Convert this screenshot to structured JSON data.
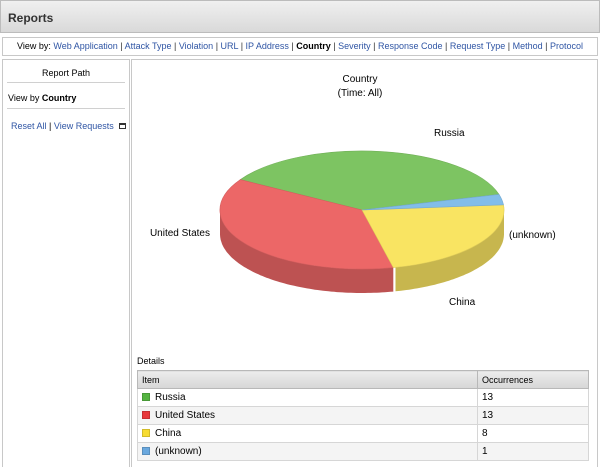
{
  "header": {
    "title": "Reports"
  },
  "view_by": {
    "label": "View by:",
    "options": [
      "Web Application",
      "Attack Type",
      "Violation",
      "URL",
      "IP Address",
      "Country",
      "Severity",
      "Response Code",
      "Request Type",
      "Method",
      "Protocol"
    ],
    "current": "Country"
  },
  "sidebar": {
    "report_path_label": "Report Path",
    "view_by_prefix": "View by",
    "view_by_value": "Country",
    "reset_all_label": "Reset All",
    "separator": "|",
    "view_requests_label": "View Requests",
    "view_requests_icon": "new-window-icon"
  },
  "chart_data": {
    "type": "pie",
    "title": "Country",
    "subtitle": "(Time: All)",
    "categories": [
      "Russia",
      "United States",
      "China",
      "(unknown)"
    ],
    "values": [
      13,
      13,
      8,
      1
    ],
    "colors": [
      "#7dc462",
      "#ec6767",
      "#f9e462",
      "#82bde9"
    ],
    "legend": "none"
  },
  "details": {
    "label": "Details",
    "columns": [
      "Item",
      "Occurrences"
    ],
    "rows": [
      {
        "item": "Russia",
        "occurrences": "13",
        "color": "#55b441"
      },
      {
        "item": "United States",
        "occurrences": "13",
        "color": "#e8383b"
      },
      {
        "item": "China",
        "occurrences": "8",
        "color": "#f7dc32"
      },
      {
        "item": "(unknown)",
        "occurrences": "1",
        "color": "#6aa8de"
      }
    ]
  }
}
